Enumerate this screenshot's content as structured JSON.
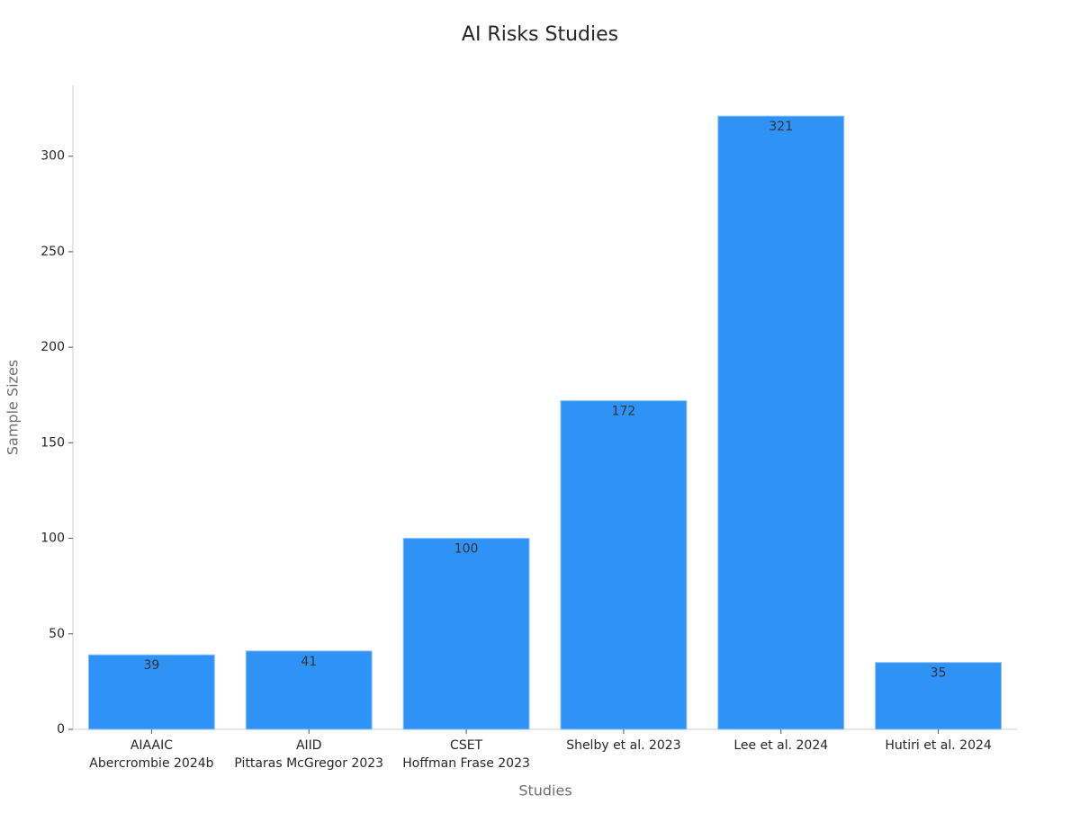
{
  "chart_data": {
    "type": "bar",
    "title": "AI Risks Studies",
    "x_label": "Studies",
    "y_label": "Sample Sizes",
    "categories": [
      "AIAAIC\nAbercrombie 2024b",
      "AIID\nPittaras McGregor 2023",
      "CSET\nHoffman Frase 2023",
      "Shelby et al. 2023",
      "Lee et al. 2024",
      "Hutiri et al. 2024"
    ],
    "values": [
      39,
      41,
      100,
      172,
      321,
      35
    ],
    "color": "#2f92f6",
    "ylim": [
      0,
      337.05
    ],
    "yticks": [
      0,
      50,
      100,
      150,
      200,
      250,
      300
    ],
    "grid": false
  }
}
